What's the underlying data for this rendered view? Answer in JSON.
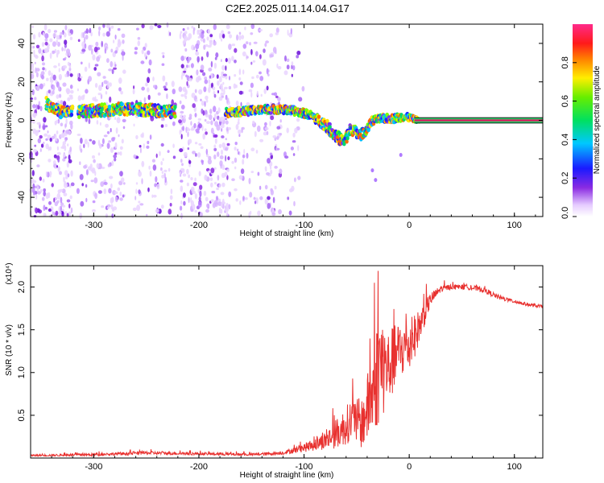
{
  "colors": {
    "snr_line": "#e8312f",
    "ridge_band": "#d81b60",
    "axis": "#000000"
  },
  "chart_data": [
    {
      "type": "heatmap",
      "title": "C2E2.2025.011.14.04.G17",
      "xlabel": "Height of straight line (km)",
      "ylabel": "Frequency (Hz)",
      "xlim": [
        -360,
        127
      ],
      "ylim": [
        -50,
        50
      ],
      "x_ticks": [
        -300,
        -200,
        -100,
        0,
        100
      ],
      "y_ticks": [
        -40,
        -20,
        0,
        20,
        40
      ],
      "colorbar": {
        "label": "Normalized spectral amplitude",
        "range": [
          0.0,
          1.0
        ],
        "ticks": [
          0.0,
          0.2,
          0.4,
          0.6,
          0.8
        ]
      },
      "ridge": {
        "x": [
          -345,
          -335,
          -325,
          -300,
          -270,
          -240,
          -215,
          -175,
          -150,
          -130,
          -110,
          -95,
          -80,
          -70,
          -62,
          -55,
          -48,
          -42,
          -35,
          -25,
          -15,
          -5,
          10,
          127
        ],
        "freq": [
          9,
          5,
          4,
          5,
          6,
          5,
          4,
          4,
          5,
          6,
          5,
          3,
          -2,
          -8,
          -11,
          -4,
          -8,
          -6,
          0,
          1,
          1,
          2,
          0,
          0
        ],
        "spread": [
          3,
          3,
          3,
          3,
          3,
          3,
          3,
          2,
          2,
          2,
          2,
          2,
          3,
          3,
          3,
          3,
          3,
          2,
          2,
          2,
          2,
          2,
          1,
          1
        ]
      },
      "noise_segments": [
        [
          -360,
          -320,
          0.9
        ],
        [
          -315,
          -270,
          0.55
        ],
        [
          -262,
          -222,
          0.35
        ],
        [
          -218,
          -170,
          0.85
        ],
        [
          -168,
          -140,
          0.4
        ],
        [
          -138,
          -122,
          0.55
        ],
        [
          -120,
          -100,
          0.2
        ]
      ]
    },
    {
      "type": "line",
      "xlabel": "Height of straight line (km)",
      "ylabel": "SNR (10 * v/v)",
      "y_scale_note": "(x10⁴)",
      "xlim": [
        -360,
        127
      ],
      "ylim": [
        0,
        2.25
      ],
      "x_ticks": [
        -300,
        -200,
        -100,
        0,
        100
      ],
      "y_ticks": [
        0.5,
        1.0,
        1.5,
        2.0
      ],
      "series": [
        {
          "name": "SNR",
          "x": [
            -360,
            -300,
            -250,
            -200,
            -150,
            -120,
            -100,
            -80,
            -65,
            -55,
            -45,
            -35,
            -28,
            -20,
            -10,
            0,
            10,
            20,
            30,
            40,
            55,
            70,
            85,
            100,
            115,
            127
          ],
          "y": [
            0.03,
            0.04,
            0.06,
            0.05,
            0.04,
            0.06,
            0.12,
            0.2,
            0.32,
            0.45,
            0.4,
            0.75,
            1.1,
            1.05,
            1.25,
            1.3,
            1.55,
            1.85,
            1.98,
            2.0,
            2.0,
            1.97,
            1.88,
            1.83,
            1.79,
            1.77
          ],
          "jitter": [
            0.01,
            0.015,
            0.02,
            0.015,
            0.015,
            0.02,
            0.05,
            0.1,
            0.2,
            0.25,
            0.3,
            0.5,
            0.7,
            0.45,
            0.35,
            0.3,
            0.2,
            0.08,
            0.04,
            0.03,
            0.03,
            0.03,
            0.03,
            0.02,
            0.02,
            0.02
          ]
        }
      ]
    }
  ]
}
